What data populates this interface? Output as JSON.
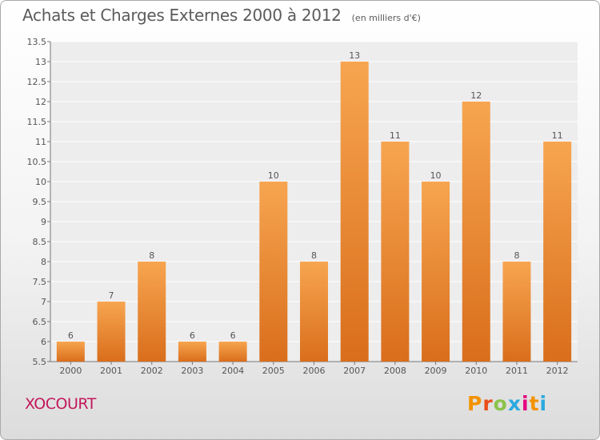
{
  "title": "Achats et Charges Externes 2000 à 2012",
  "unit_note": "(en milliers d'€)",
  "location": "XOCOURT",
  "logo": {
    "text": "Proxiti",
    "colors": [
      "#f39200",
      "#e94e1b",
      "#8bc34a",
      "#2aa9e0",
      "#e6007e",
      "#f39200",
      "#2aa9e0"
    ]
  },
  "chart_data": {
    "type": "bar",
    "categories": [
      "2000",
      "2001",
      "2002",
      "2003",
      "2004",
      "2005",
      "2006",
      "2007",
      "2008",
      "2009",
      "2010",
      "2011",
      "2012"
    ],
    "values": [
      6,
      7,
      8,
      6,
      6,
      10,
      8,
      13,
      11,
      10,
      12,
      8,
      11
    ],
    "value_labels": [
      "6",
      "7",
      "8",
      "6",
      "6",
      "10",
      "8",
      "13",
      "11",
      "10",
      "12",
      "8",
      "11"
    ],
    "ylim": [
      5.5,
      13.5
    ],
    "yticks": [
      "5.5",
      "6",
      "6.5",
      "7",
      "7.5",
      "8",
      "8.5",
      "9",
      "9.5",
      "10",
      "10.5",
      "11",
      "11.5",
      "12",
      "12.5",
      "13",
      "13.5"
    ],
    "grid": true,
    "bar_color": "#e8892f"
  }
}
